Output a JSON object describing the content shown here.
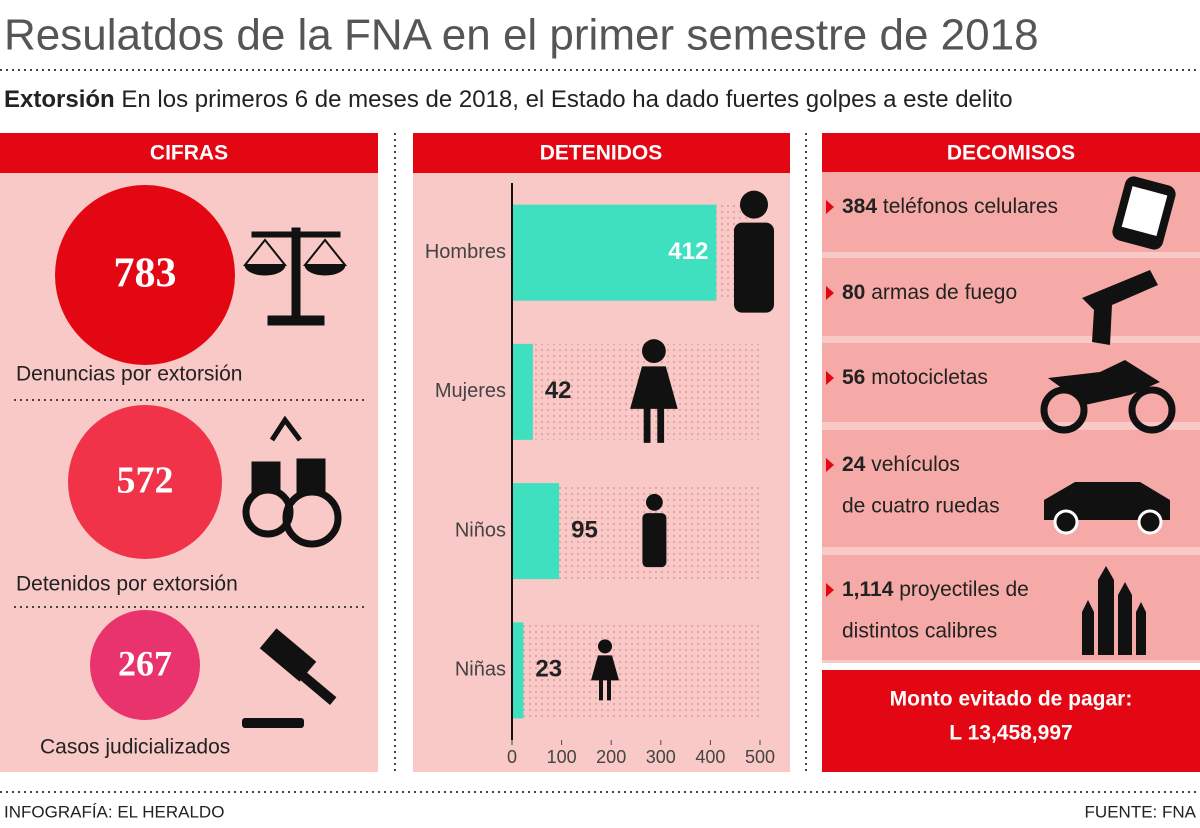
{
  "header": {
    "title": "Resulatdos de la FNA en el primer semestre de 2018",
    "subtitle_bold": "Extorsión",
    "subtitle": "En los primeros 6 de meses de 2018, el Estado ha dado fuertes golpes a este delito"
  },
  "cifras": {
    "title": "CIFRAS",
    "items": [
      {
        "value": "783",
        "label": "Denuncias por extorsión"
      },
      {
        "value": "572",
        "label": "Detenidos por extorsión"
      },
      {
        "value": "267",
        "label": "Casos judicializados"
      }
    ]
  },
  "chart_data": {
    "type": "bar",
    "title": "DETENIDOS",
    "categories": [
      "Hombres",
      "Mujeres",
      "Niños",
      "Niñas"
    ],
    "values": [
      412,
      42,
      95,
      23
    ],
    "color": "#3fe0c0",
    "xlim": [
      0,
      500
    ],
    "xticks": [
      0,
      100,
      200,
      300,
      400,
      500
    ]
  },
  "decomisos": {
    "title": "DECOMISOS",
    "items": [
      {
        "value": "384",
        "lines": [
          "teléfonos celulares"
        ]
      },
      {
        "value": "80",
        "lines": [
          "armas de fuego"
        ]
      },
      {
        "value": "56",
        "lines": [
          "motocicletas"
        ]
      },
      {
        "value": "24",
        "lines": [
          "vehículos",
          "de cuatro ruedas"
        ]
      },
      {
        "value": "1,114",
        "lines": [
          "proyectiles de",
          "distintos calibres"
        ]
      }
    ],
    "total_label": "Monto evitado de pagar:",
    "total": "L 13,458,997"
  },
  "footer": {
    "credit": "INFOGRAFÍA: EL HERALDO",
    "source": "FUENTE: FNA"
  }
}
